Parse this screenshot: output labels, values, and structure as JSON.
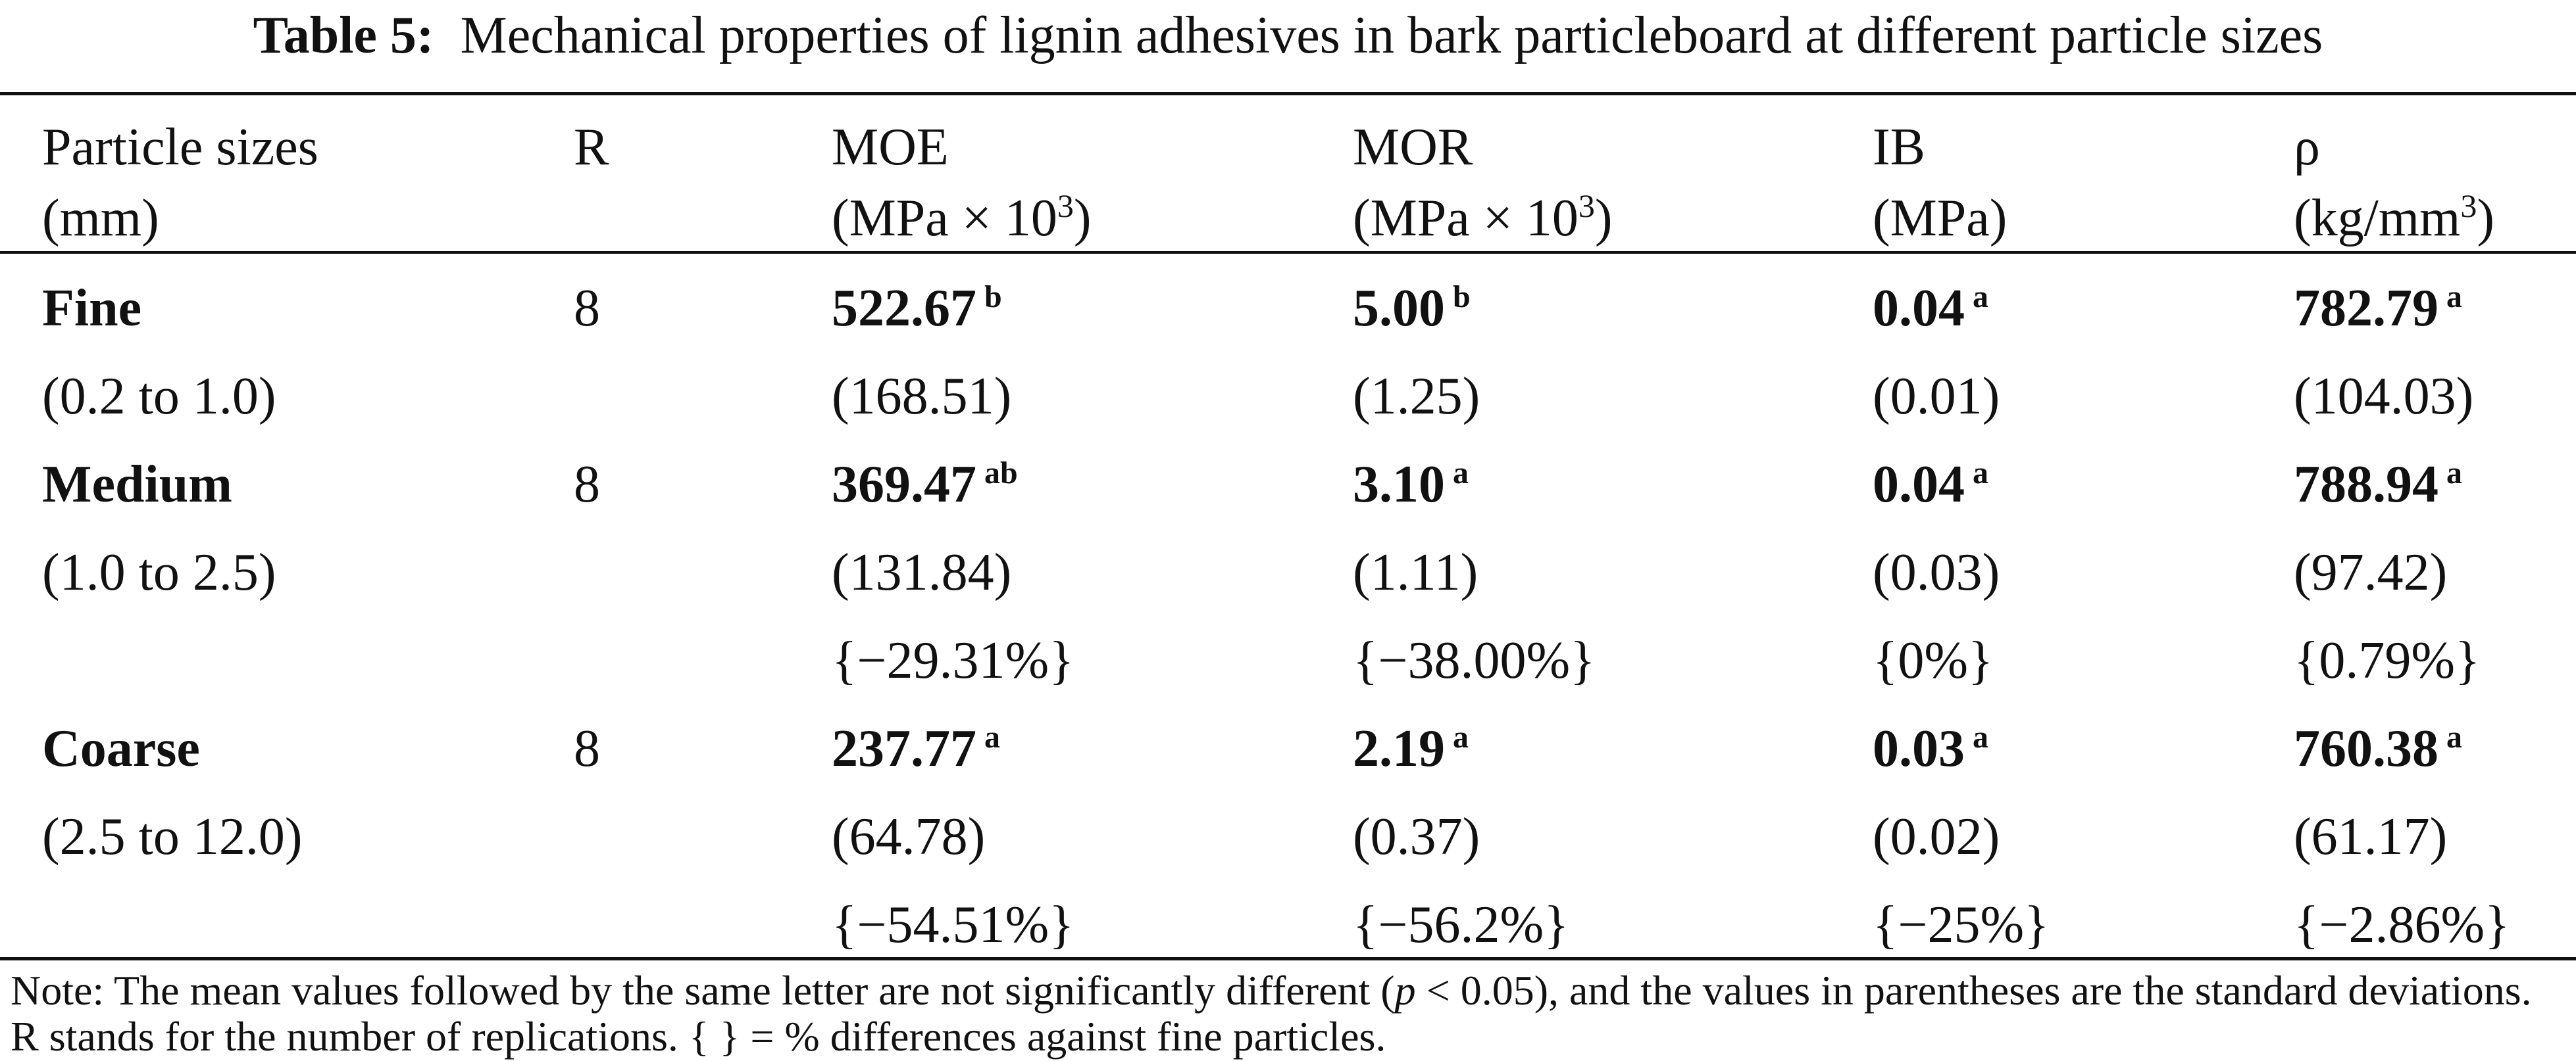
{
  "caption": {
    "label": "Table 5:",
    "text": "Mechanical properties of lignin adhesives in bark particleboard at different particle sizes"
  },
  "headers": {
    "size_line1": "Particle sizes",
    "size_line2": "(mm)",
    "r": "R",
    "moe_line1": "MOE",
    "moe_line2a": "(MPa × 10",
    "moe_sup": "3",
    "moe_line2b": ")",
    "mor_line1": "MOR",
    "mor_line2a": "(MPa × 10",
    "mor_sup": "3",
    "mor_line2b": ")",
    "ib_line1": "IB",
    "ib_line2": "(MPa)",
    "rho_line1": "ρ",
    "rho_line2a": "(kg/mm",
    "rho_sup": "3",
    "rho_line2b": ")"
  },
  "rows": [
    {
      "name": "Fine",
      "range": "(0.2 to 1.0)",
      "r": "8",
      "moe": {
        "mean": "522.67",
        "letter": "b",
        "sd": "(168.51)"
      },
      "mor": {
        "mean": "5.00",
        "letter": "b",
        "sd": "(1.25)"
      },
      "ib": {
        "mean": "0.04",
        "letter": "a",
        "sd": "(0.01)"
      },
      "rho": {
        "mean": "782.79",
        "letter": "a",
        "sd": "(104.03)"
      }
    },
    {
      "name": "Medium",
      "range": "(1.0 to 2.5)",
      "r": "8",
      "moe": {
        "mean": "369.47",
        "letter": "ab",
        "sd": "(131.84)",
        "diff": "{−29.31%}"
      },
      "mor": {
        "mean": "3.10",
        "letter": "a",
        "sd": "(1.11)",
        "diff": "{−38.00%}"
      },
      "ib": {
        "mean": "0.04",
        "letter": "a",
        "sd": "(0.03)",
        "diff": "{0%}"
      },
      "rho": {
        "mean": "788.94",
        "letter": "a",
        "sd": "(97.42)",
        "diff": "{0.79%}"
      }
    },
    {
      "name": "Coarse",
      "range": "(2.5 to 12.0)",
      "r": "8",
      "moe": {
        "mean": "237.77",
        "letter": "a",
        "sd": "(64.78)",
        "diff": "{−54.51%}"
      },
      "mor": {
        "mean": "2.19",
        "letter": "a",
        "sd": "(0.37)",
        "diff": "{−56.2%}"
      },
      "ib": {
        "mean": "0.03",
        "letter": "a",
        "sd": "(0.02)",
        "diff": "{−25%}"
      },
      "rho": {
        "mean": "760.38",
        "letter": "a",
        "sd": "(61.17)",
        "diff": "{−2.86%}"
      }
    }
  ],
  "note": {
    "part1": "Note: The mean values followed by the same letter are not significantly different (",
    "p": "p",
    "part2": " < 0.05), and the values in parentheses are the standard deviations.",
    "line2": "R stands for the number of replications. { } = % differences against fine particles."
  }
}
